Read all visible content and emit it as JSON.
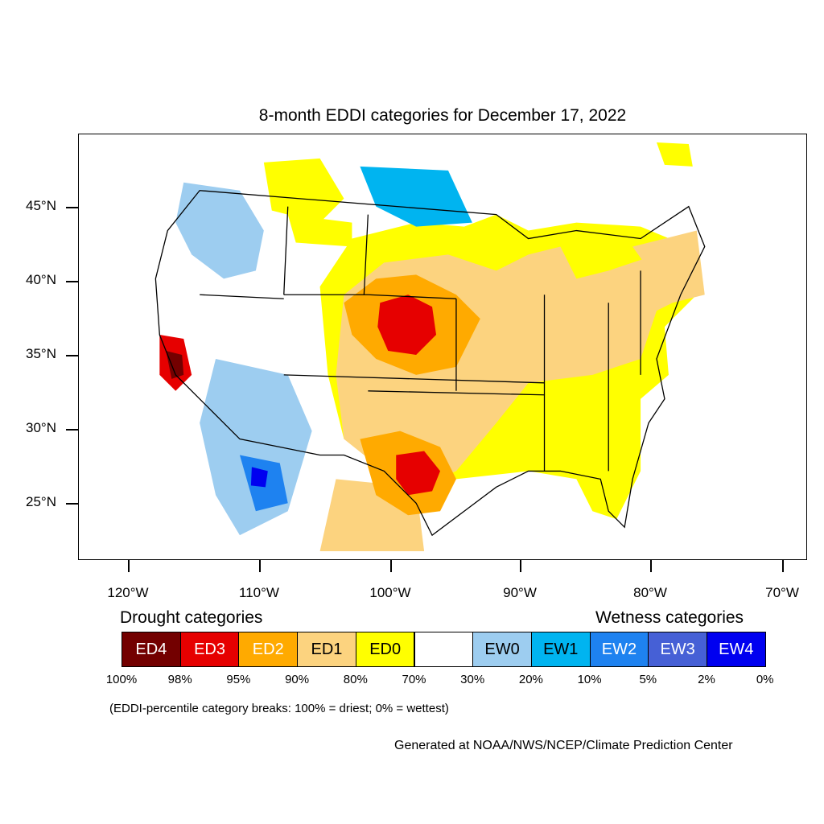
{
  "title": "8-month EDDI categories for December 17, 2022",
  "lat_labels": [
    "45°N",
    "40°N",
    "35°N",
    "30°N",
    "25°N"
  ],
  "lon_labels": [
    "120°W",
    "110°W",
    "100°W",
    "90°W",
    "80°W",
    "70°W"
  ],
  "legend": {
    "drought_heading": "Drought categories",
    "wetness_heading": "Wetness categories",
    "categories": [
      {
        "label": "ED4",
        "color": "#730000",
        "text_color": "#ffffff"
      },
      {
        "label": "ED3",
        "color": "#e60000",
        "text_color": "#ffffff"
      },
      {
        "label": "ED2",
        "color": "#ffaa00",
        "text_color": "#ffffff"
      },
      {
        "label": "ED1",
        "color": "#fcd37f",
        "text_color": "#000000"
      },
      {
        "label": "ED0",
        "color": "#ffff00",
        "text_color": "#000000"
      },
      {
        "label": "",
        "color": "#ffffff",
        "text_color": "#000000"
      },
      {
        "label": "EW0",
        "color": "#9dcdf0",
        "text_color": "#000000"
      },
      {
        "label": "EW1",
        "color": "#00b4f0",
        "text_color": "#000000"
      },
      {
        "label": "EW2",
        "color": "#1e82f0",
        "text_color": "#ffffff"
      },
      {
        "label": "EW3",
        "color": "#4660d6",
        "text_color": "#ffffff"
      },
      {
        "label": "EW4",
        "color": "#0000f0",
        "text_color": "#ffffff"
      }
    ],
    "breaks": [
      "100%",
      "98%",
      "95%",
      "90%",
      "80%",
      "70%",
      "30%",
      "20%",
      "10%",
      "5%",
      "2%",
      "0%"
    ],
    "note": "(EDDI-percentile category breaks: 100% = driest; 0% = wettest)"
  },
  "credit": "Generated at NOAA/NWS/NCEP/Climate Prediction Center"
}
